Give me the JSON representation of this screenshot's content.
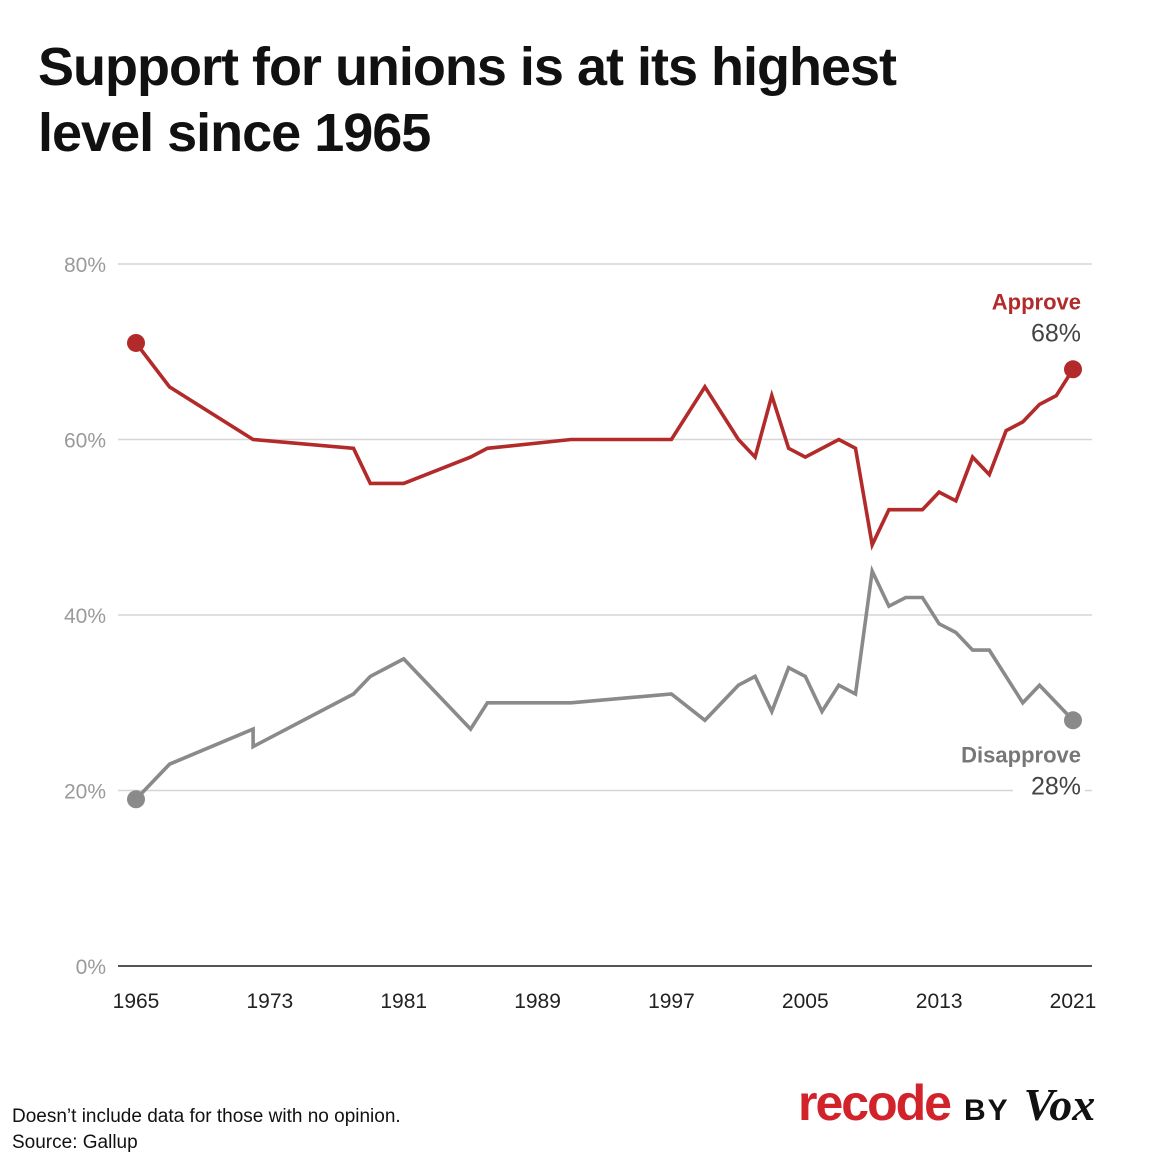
{
  "title": "Support for unions is at its highest level since 1965",
  "chart_data": {
    "type": "line",
    "title": "Support for unions is at its highest level since 1965",
    "xlabel": "",
    "ylabel": "",
    "xlim": [
      1965,
      2021
    ],
    "ylim": [
      0,
      80
    ],
    "x_ticks": [
      "1965",
      "1973",
      "1981",
      "1989",
      "1997",
      "2005",
      "2013",
      "2021"
    ],
    "y_ticks": [
      "0%",
      "20%",
      "40%",
      "60%",
      "80%"
    ],
    "grid": true,
    "legend": "direct labels at right end of lines",
    "series": [
      {
        "name": "Approve",
        "end_label": "68%",
        "color": "#b22a2a",
        "points": [
          [
            1965,
            71
          ],
          [
            1967,
            66
          ],
          [
            1972,
            60
          ],
          [
            1978,
            59
          ],
          [
            1979,
            55
          ],
          [
            1981,
            55
          ],
          [
            1985,
            58
          ],
          [
            1986,
            59
          ],
          [
            1991,
            60
          ],
          [
            1997,
            60
          ],
          [
            1999,
            66
          ],
          [
            2001,
            60
          ],
          [
            2002,
            58
          ],
          [
            2003,
            65
          ],
          [
            2004,
            59
          ],
          [
            2005,
            58
          ],
          [
            2007,
            60
          ],
          [
            2008,
            59
          ],
          [
            2009,
            48
          ],
          [
            2010,
            52
          ],
          [
            2012,
            52
          ],
          [
            2013,
            54
          ],
          [
            2014,
            53
          ],
          [
            2015,
            58
          ],
          [
            2016,
            56
          ],
          [
            2017,
            61
          ],
          [
            2018,
            62
          ],
          [
            2019,
            64
          ],
          [
            2020,
            65
          ],
          [
            2021,
            68
          ]
        ]
      },
      {
        "name": "Disapprove",
        "end_label": "28%",
        "color": "#8a8a8a",
        "points": [
          [
            1965,
            19
          ],
          [
            1967,
            23
          ],
          [
            1972,
            27
          ],
          [
            1972,
            25
          ],
          [
            1978,
            31
          ],
          [
            1979,
            33
          ],
          [
            1981,
            35
          ],
          [
            1985,
            27
          ],
          [
            1986,
            30
          ],
          [
            1991,
            30
          ],
          [
            1997,
            31
          ],
          [
            1999,
            28
          ],
          [
            2001,
            32
          ],
          [
            2002,
            33
          ],
          [
            2003,
            29
          ],
          [
            2004,
            34
          ],
          [
            2005,
            33
          ],
          [
            2006,
            29
          ],
          [
            2007,
            32
          ],
          [
            2008,
            31
          ],
          [
            2009,
            45
          ],
          [
            2010,
            41
          ],
          [
            2011,
            42
          ],
          [
            2012,
            42
          ],
          [
            2013,
            39
          ],
          [
            2014,
            38
          ],
          [
            2015,
            36
          ],
          [
            2016,
            36
          ],
          [
            2018,
            30
          ],
          [
            2019,
            32
          ],
          [
            2021,
            28
          ]
        ]
      }
    ]
  },
  "footnote": {
    "line1": "Doesn’t include data for those with no opinion.",
    "line2": "Source: Gallup"
  },
  "brand": {
    "recode": "recode",
    "by": "BY",
    "vox": "Vox"
  }
}
